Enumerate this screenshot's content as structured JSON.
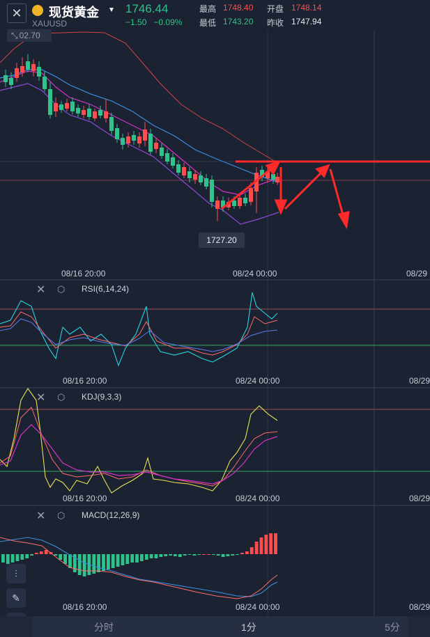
{
  "header": {
    "title": "现货黄金",
    "symbol": "XAUUSD",
    "price": "1746.44",
    "change": "−1.50",
    "change_pct": "−0.09%",
    "high_label": "最高",
    "high_value": "1748.40",
    "open_label": "开盘",
    "open_value": "1748.14",
    "low_label": "最低",
    "low_value": "1743.20",
    "prev_label": "昨收",
    "prev_value": "1747.94"
  },
  "main_chart": {
    "left_tag": "02.70",
    "low_marker": "1727.20",
    "x_labels": [
      "08/16 20:00",
      "08/24 00:00",
      "08/29"
    ]
  },
  "indicators": {
    "rsi": {
      "title": "RSI(6,14,24)",
      "x_labels": [
        "08/16 20:00",
        "08/24 00:00",
        "08/29"
      ]
    },
    "kdj": {
      "title": "KDJ(9,3,3)",
      "x_labels": [
        "08/16 20:00",
        "08/24 00:00",
        "08/29"
      ]
    },
    "macd": {
      "title": "MACD(12,26,9)",
      "x_labels": [
        "08/16 20:00",
        "08/24 00:00",
        "08/29"
      ]
    }
  },
  "tabs": [
    "分时",
    "1分",
    "5分"
  ],
  "colors": {
    "up": "#ff4d4d",
    "down": "#2fc28b",
    "bg": "#1b2232"
  }
}
